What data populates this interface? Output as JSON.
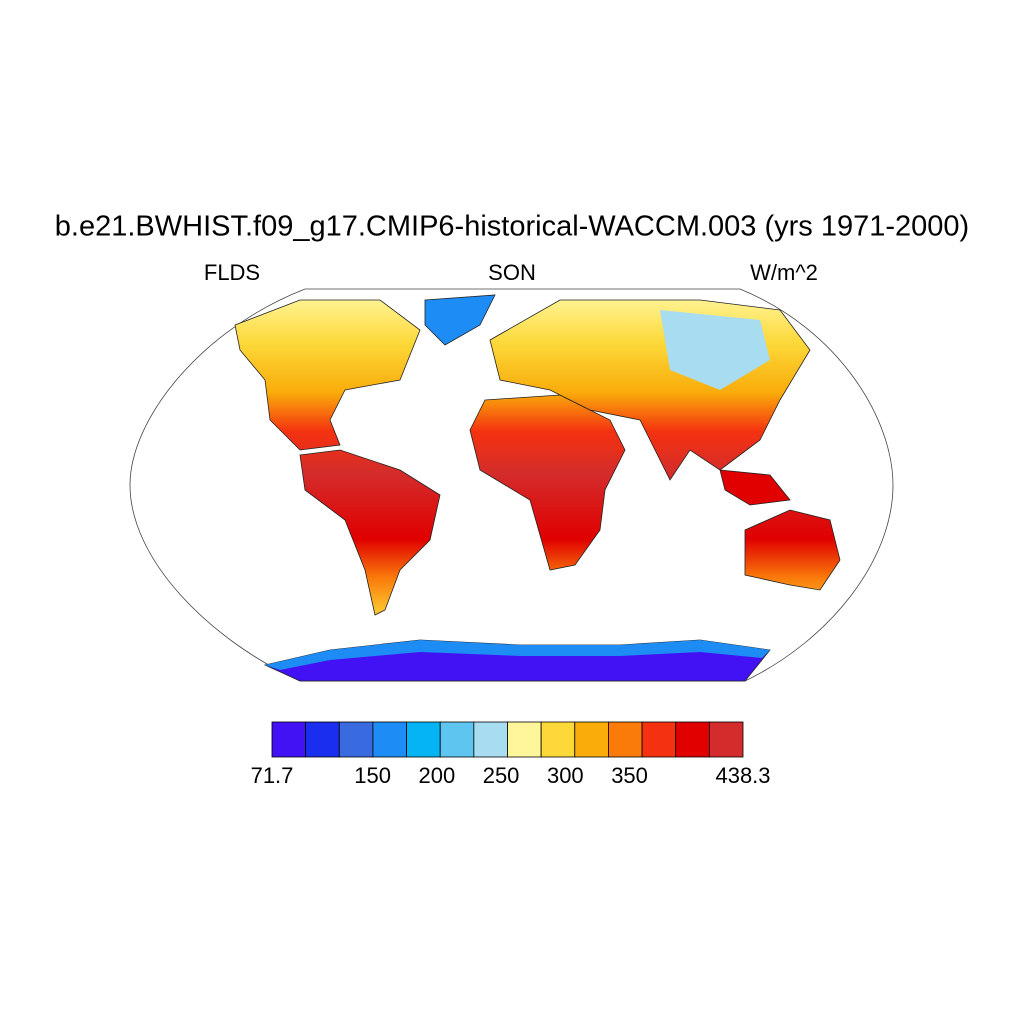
{
  "chart_data": {
    "type": "map",
    "title": "b.e21.BWHIST.f09_g17.CMIP6-historical-WACCM.003 (yrs 1971-2000)",
    "left_string": "FLDS",
    "center_string": "SON",
    "right_string": "W/m^2",
    "colorbar": {
      "colors": [
        "#4212f5",
        "#1a2ef0",
        "#3a6ae0",
        "#1e8cf5",
        "#04b4f5",
        "#5ec4f0",
        "#a8dcf0",
        "#fff59a",
        "#fcd838",
        "#f9ac0a",
        "#fa7a0a",
        "#f53210",
        "#e00000",
        "#d42c2c"
      ],
      "lim": [
        71.7,
        438.3
      ],
      "ticks": [
        71.7,
        150,
        200,
        250,
        300,
        350,
        438.3
      ]
    }
  }
}
